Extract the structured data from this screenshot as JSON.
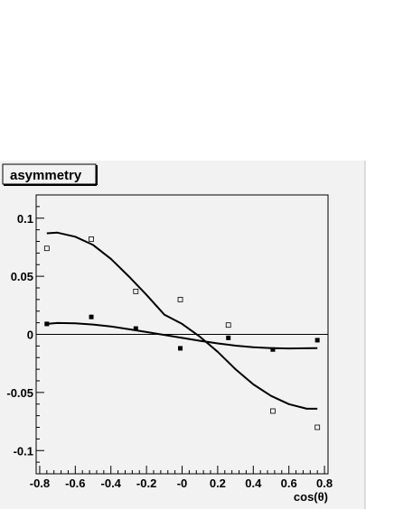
{
  "chart_data": {
    "type": "scatter",
    "title": "asymmetry",
    "xlabel": "cos(θ)",
    "ylabel": "",
    "xlim": [
      -0.82,
      0.82
    ],
    "ylim": [
      -0.12,
      0.12
    ],
    "x_ticks": [
      -0.8,
      -0.6,
      -0.4,
      -0.2,
      0,
      0.2,
      0.4,
      0.6,
      0.8
    ],
    "x_tick_labels": [
      "-0.8",
      "-0.6",
      "-0.4",
      "-0.2",
      "-0",
      "0.2",
      "0.4",
      "0.6",
      "0.8"
    ],
    "y_ticks": [
      0.1,
      0.05,
      0,
      -0.05,
      -0.1
    ],
    "y_tick_labels": [
      "0.1",
      "0.05",
      "0",
      "-0.05",
      "-0.1"
    ],
    "zero_line": true,
    "grid": false,
    "legend": "none",
    "series": [
      {
        "marker": "open-square",
        "points": [
          {
            "x": -0.76,
            "y": 0.074
          },
          {
            "x": -0.51,
            "y": 0.082
          },
          {
            "x": -0.26,
            "y": 0.037
          },
          {
            "x": -0.01,
            "y": 0.03
          },
          {
            "x": 0.26,
            "y": 0.008
          },
          {
            "x": 0.51,
            "y": -0.066
          },
          {
            "x": 0.76,
            "y": -0.08
          }
        ]
      },
      {
        "marker": "filled-square",
        "points": [
          {
            "x": -0.76,
            "y": 0.009
          },
          {
            "x": -0.51,
            "y": 0.015
          },
          {
            "x": -0.26,
            "y": 0.005
          },
          {
            "x": -0.01,
            "y": -0.012
          },
          {
            "x": 0.26,
            "y": -0.003
          },
          {
            "x": 0.51,
            "y": -0.013
          },
          {
            "x": 0.76,
            "y": -0.005
          }
        ]
      }
    ],
    "curves": [
      {
        "points": [
          {
            "x": -0.76,
            "y": 0.087
          },
          {
            "x": -0.7,
            "y": 0.0875
          },
          {
            "x": -0.6,
            "y": 0.084
          },
          {
            "x": -0.5,
            "y": 0.077
          },
          {
            "x": -0.4,
            "y": 0.065
          },
          {
            "x": -0.3,
            "y": 0.05
          },
          {
            "x": -0.2,
            "y": 0.034
          },
          {
            "x": -0.1,
            "y": 0.017
          },
          {
            "x": 0.0,
            "y": 0.009
          },
          {
            "x": 0.1,
            "y": -0.002
          },
          {
            "x": 0.2,
            "y": -0.015
          },
          {
            "x": 0.3,
            "y": -0.03
          },
          {
            "x": 0.4,
            "y": -0.043
          },
          {
            "x": 0.5,
            "y": -0.053
          },
          {
            "x": 0.6,
            "y": -0.06
          },
          {
            "x": 0.7,
            "y": -0.064
          },
          {
            "x": 0.76,
            "y": -0.064
          }
        ]
      },
      {
        "points": [
          {
            "x": -0.76,
            "y": 0.009
          },
          {
            "x": -0.7,
            "y": 0.0098
          },
          {
            "x": -0.6,
            "y": 0.0095
          },
          {
            "x": -0.5,
            "y": 0.0085
          },
          {
            "x": -0.4,
            "y": 0.0068
          },
          {
            "x": -0.3,
            "y": 0.0045
          },
          {
            "x": -0.2,
            "y": 0.002
          },
          {
            "x": -0.1,
            "y": -0.0005
          },
          {
            "x": 0.0,
            "y": -0.003
          },
          {
            "x": 0.1,
            "y": -0.0055
          },
          {
            "x": 0.2,
            "y": -0.0078
          },
          {
            "x": 0.3,
            "y": -0.0097
          },
          {
            "x": 0.4,
            "y": -0.011
          },
          {
            "x": 0.5,
            "y": -0.0118
          },
          {
            "x": 0.6,
            "y": -0.0121
          },
          {
            "x": 0.7,
            "y": -0.012
          },
          {
            "x": 0.76,
            "y": -0.0118
          }
        ]
      }
    ]
  }
}
